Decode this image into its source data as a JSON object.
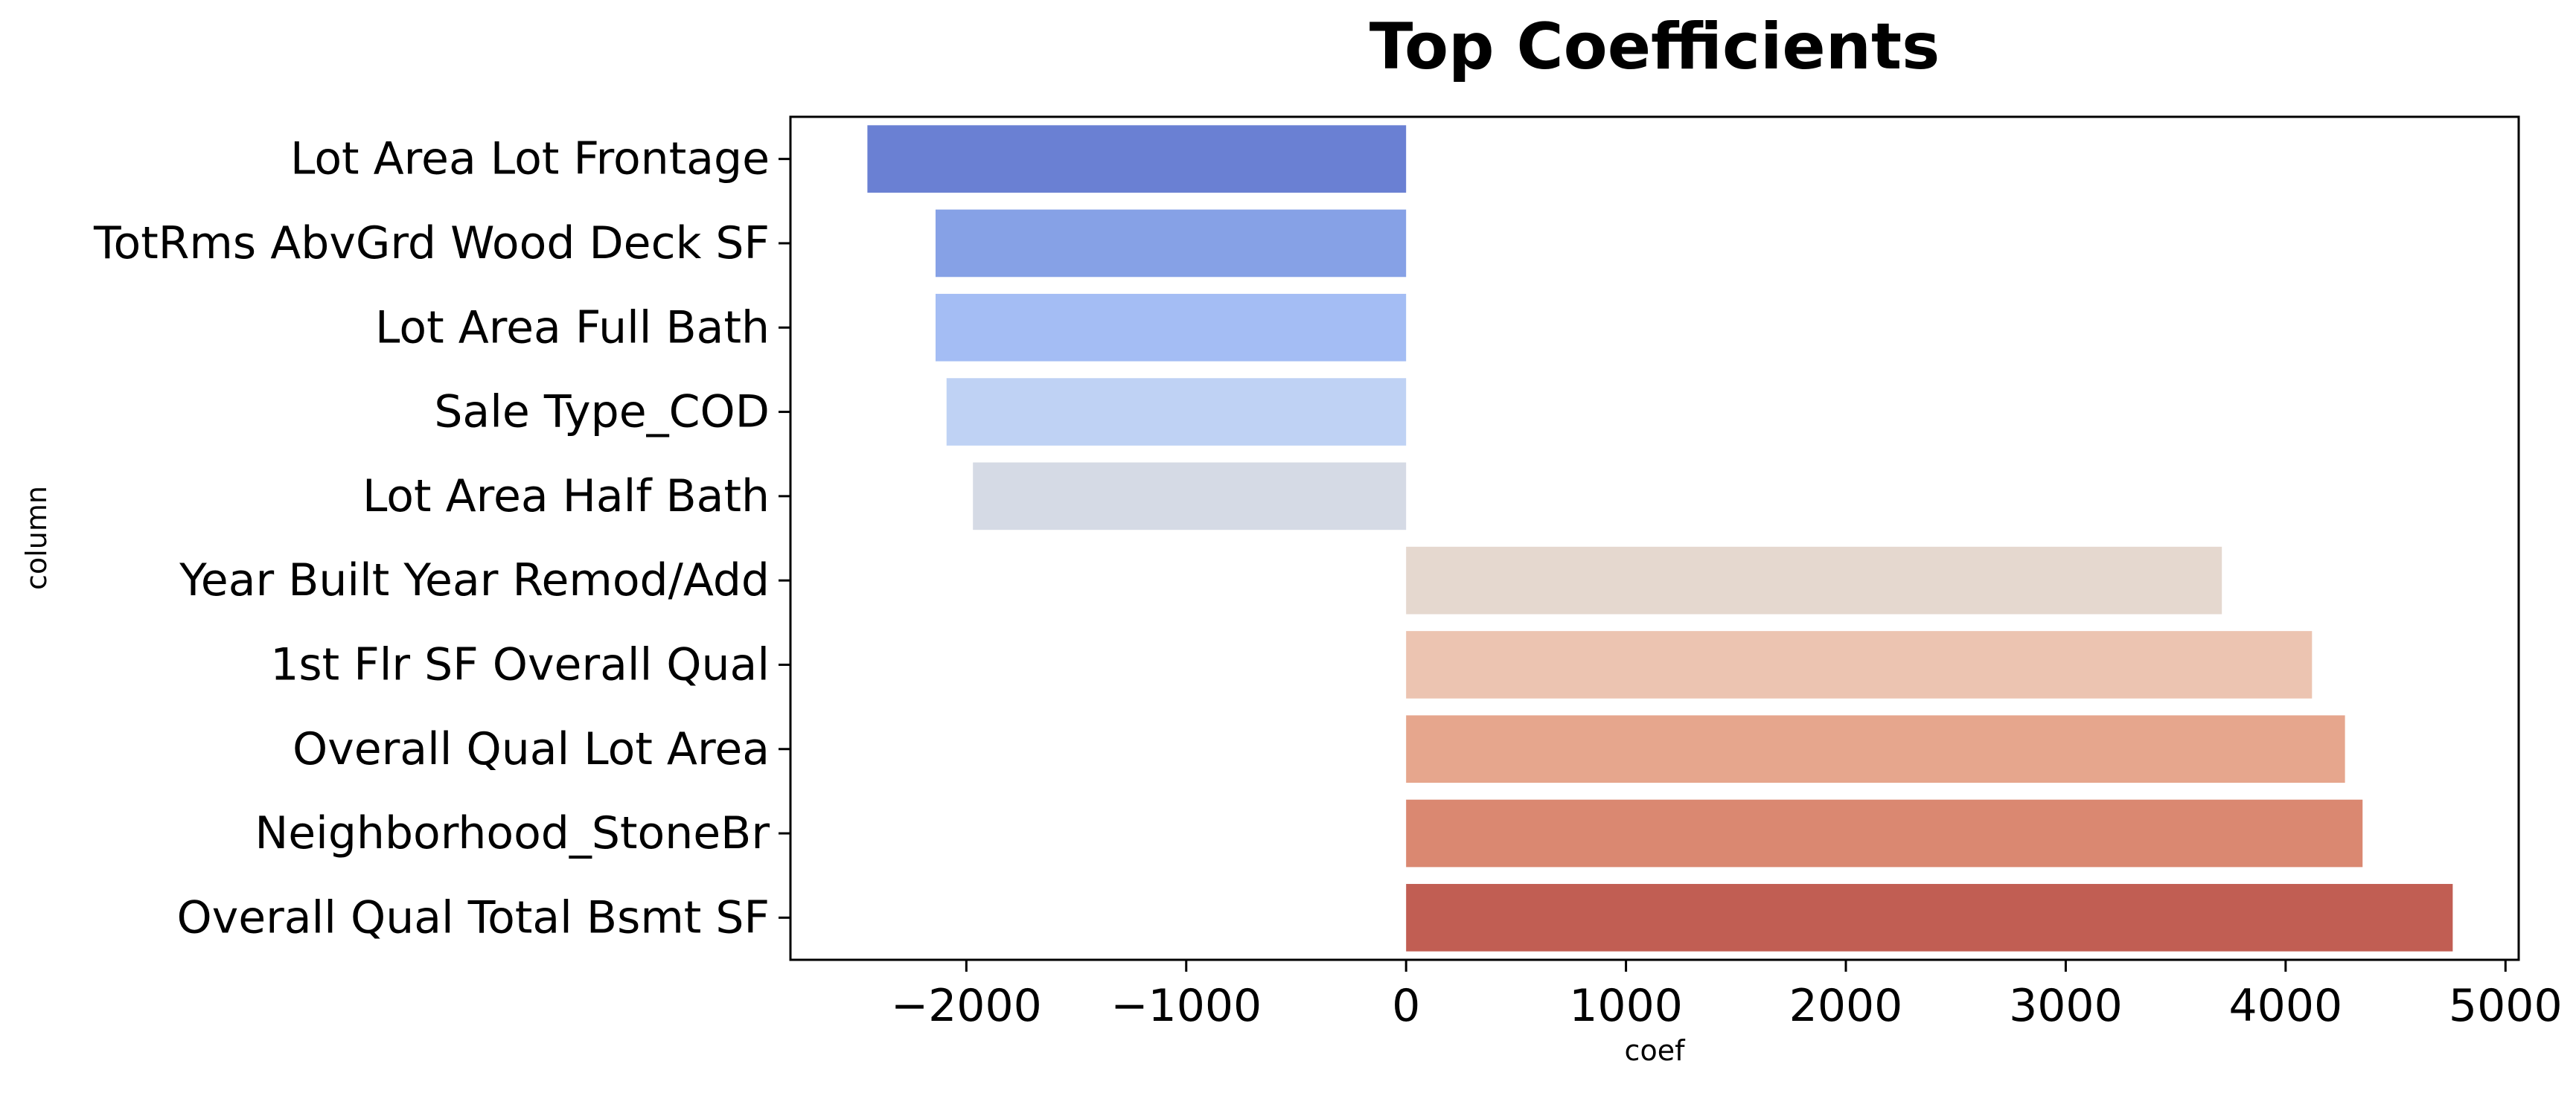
{
  "chart_data": {
    "type": "bar",
    "orientation": "horizontal",
    "title": "Top Coefficients",
    "xlabel": "coef",
    "ylabel": "column",
    "categories": [
      "Lot Area Lot Frontage",
      "TotRms AbvGrd Wood Deck SF",
      "Lot Area Full Bath",
      "Sale Type_COD",
      "Lot Area Half Bath",
      "Year Built Year Remod/Add",
      "1st Flr SF Overall Qual",
      "Overall Qual Lot Area",
      "Neighborhood_StoneBr",
      "Overall Qual Total Bsmt SF"
    ],
    "values": [
      -2450,
      -2140,
      -2140,
      -2090,
      -1970,
      3710,
      4120,
      4270,
      4350,
      4760
    ],
    "colors": [
      "#6a80d3",
      "#86a1e6",
      "#a4bdf4",
      "#bfd2f4",
      "#d5dae5",
      "#e5d8cf",
      "#ecc4b1",
      "#e6a68d",
      "#da8871",
      "#c15e53"
    ],
    "xlim": [
      -2800,
      5060
    ],
    "xticks": [
      -2000,
      -1000,
      0,
      1000,
      2000,
      3000,
      4000,
      5000
    ],
    "xtick_labels": [
      "−2000",
      "−1000",
      "0",
      "1000",
      "2000",
      "3000",
      "4000",
      "5000"
    ],
    "grid": false,
    "legend": "none"
  }
}
